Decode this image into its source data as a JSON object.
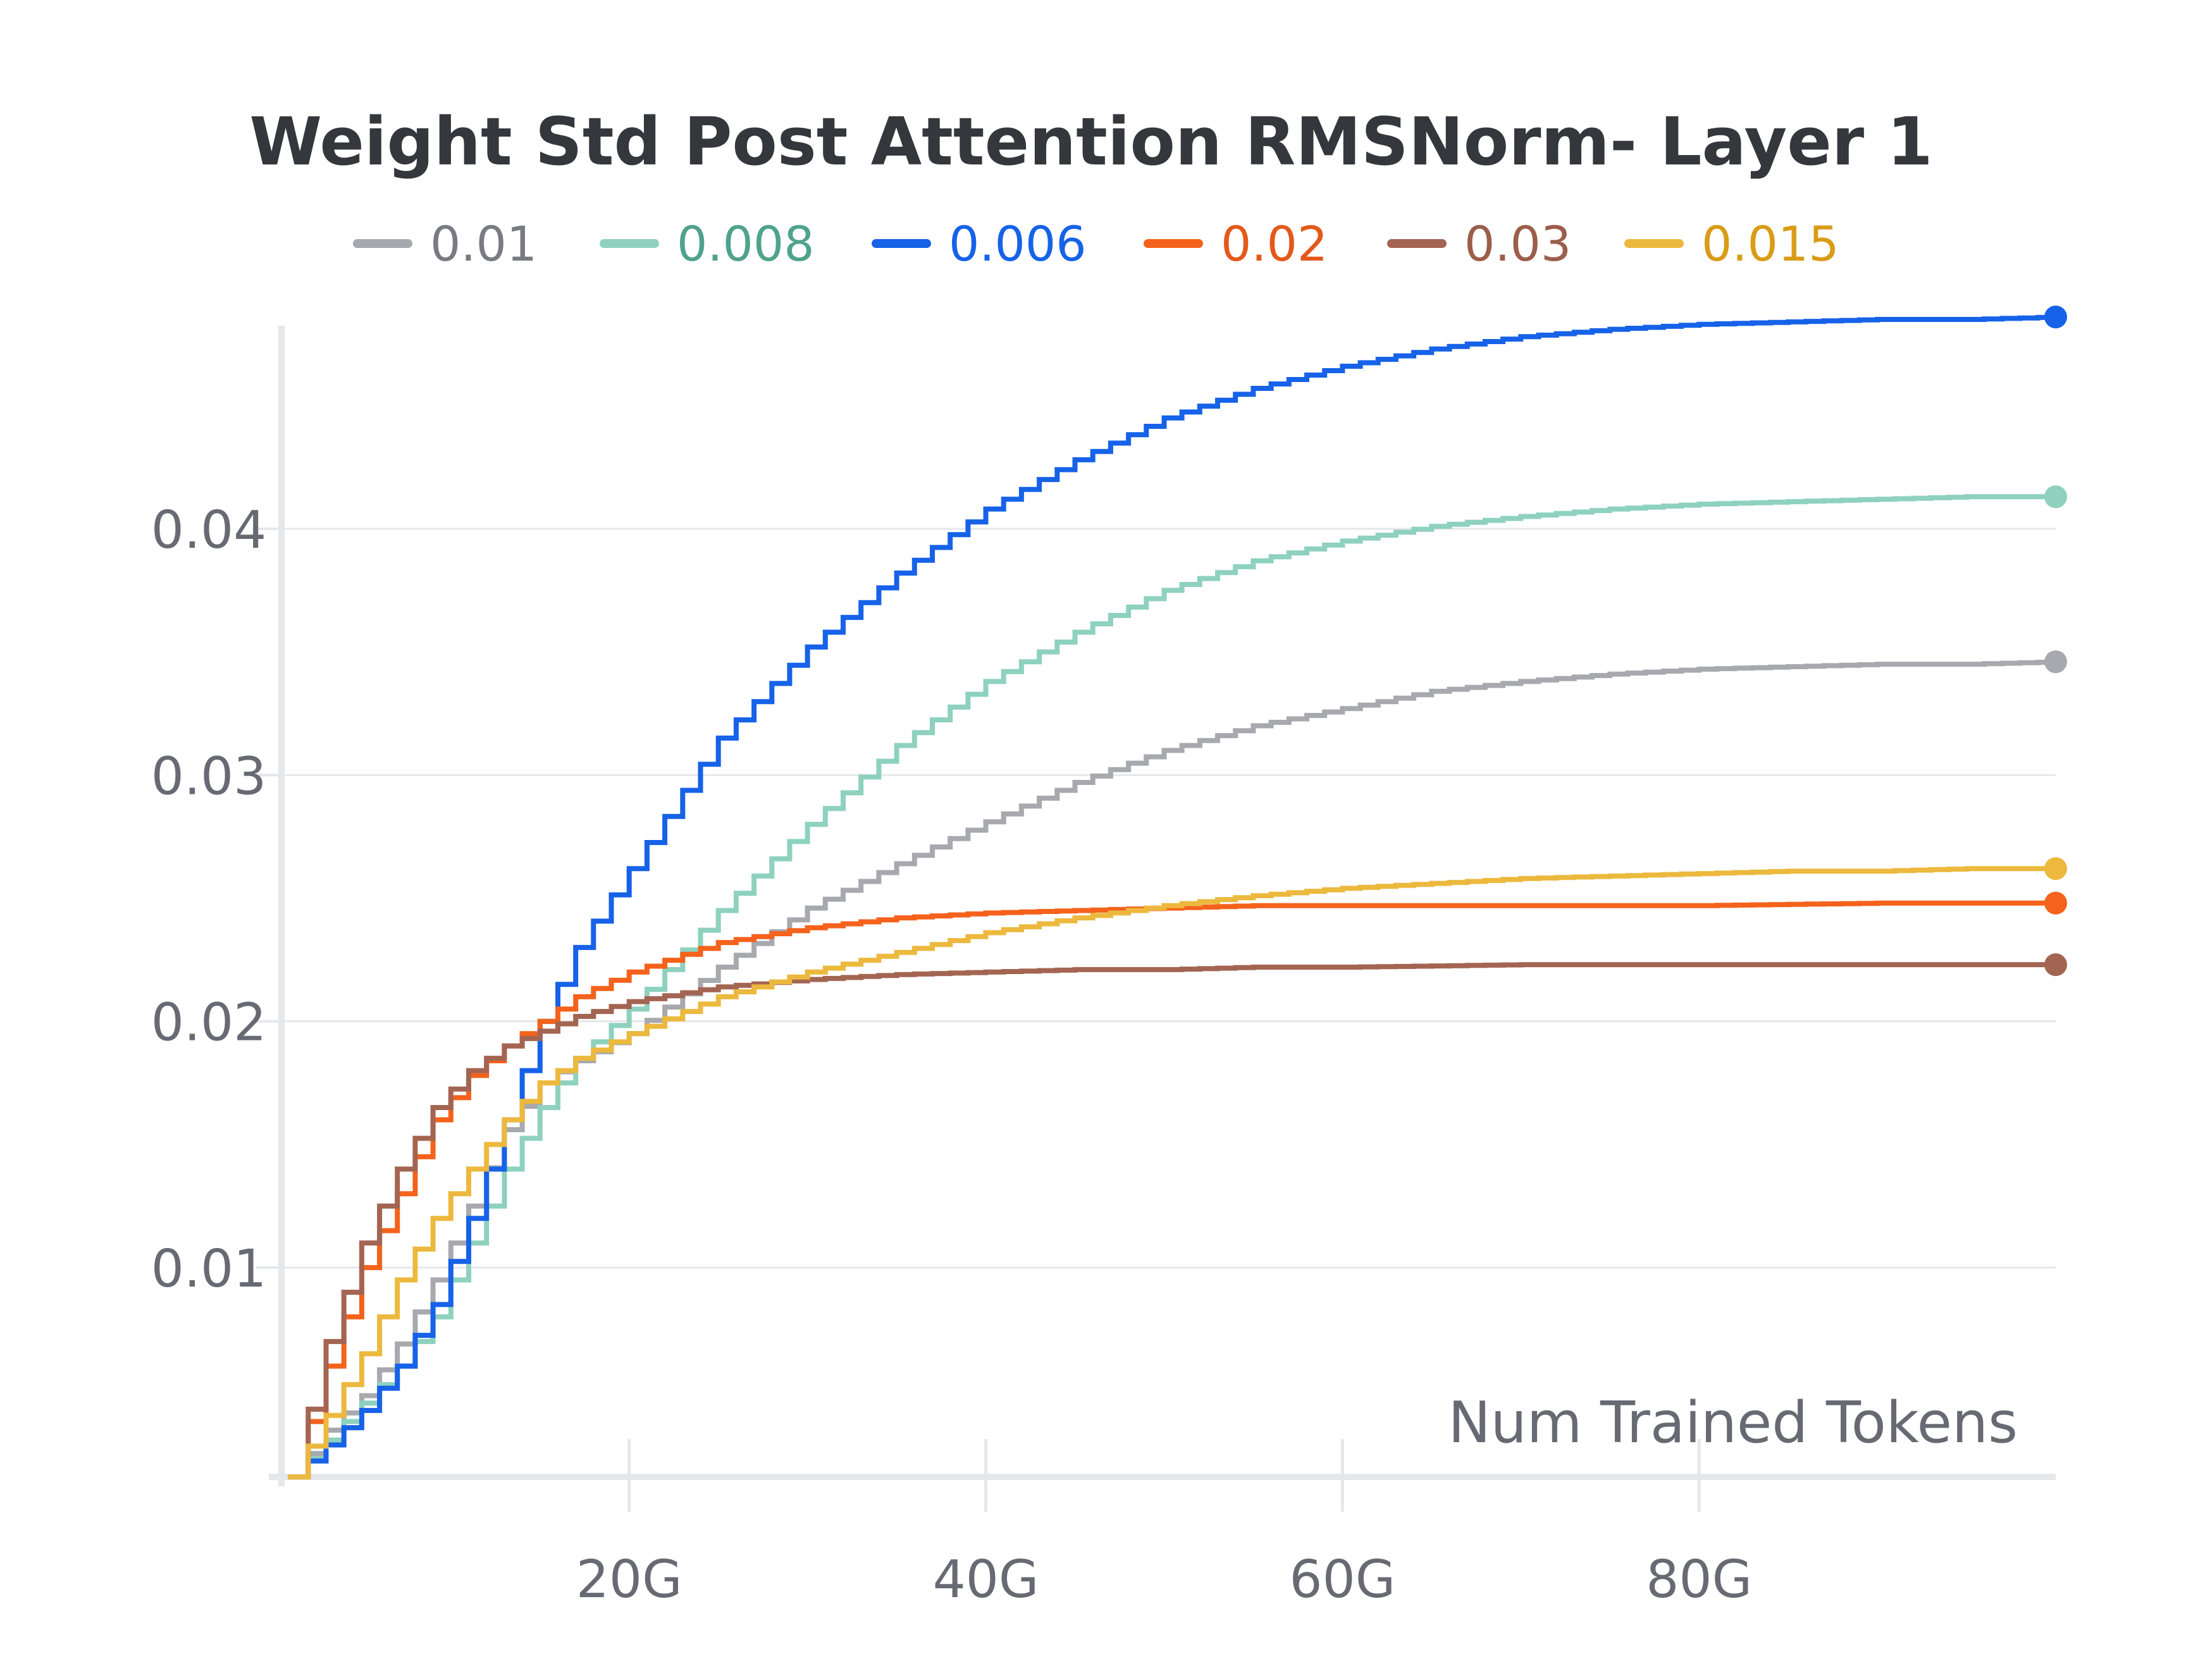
{
  "chart_data": {
    "type": "line",
    "title": "Weight Std Post Attention RMSNorm- Layer 1",
    "xlabel": "Num Trained Tokens",
    "ylabel": "",
    "x_unit_suffix": "G",
    "xlim": [
      0.5,
      100
    ],
    "ylim": [
      0.0015,
      0.0485
    ],
    "x_ticks": [
      {
        "value": 20,
        "label": "20G"
      },
      {
        "value": 40,
        "label": "40G"
      },
      {
        "value": 60,
        "label": "60G"
      },
      {
        "value": 80,
        "label": "80G"
      }
    ],
    "y_ticks": [
      {
        "value": 0.01,
        "label": "0.01"
      },
      {
        "value": 0.02,
        "label": "0.02"
      },
      {
        "value": 0.03,
        "label": "0.03"
      },
      {
        "value": 0.04,
        "label": "0.04"
      }
    ],
    "grid": {
      "horizontal": true,
      "vertical": false
    },
    "legend_position": "top",
    "step_size": 1,
    "series": [
      {
        "name": "0.01",
        "color": "#a7a9ae",
        "label_color": "#787b82",
        "points": [
          [
            1,
            0.0015
          ],
          [
            3,
            0.0034
          ],
          [
            5,
            0.0048
          ],
          [
            7,
            0.0069
          ],
          [
            9,
            0.0095
          ],
          [
            11,
            0.0125
          ],
          [
            13,
            0.0156
          ],
          [
            15,
            0.0175
          ],
          [
            17,
            0.0184
          ],
          [
            20,
            0.0195
          ],
          [
            25,
            0.0222
          ],
          [
            30,
            0.0246
          ],
          [
            35,
            0.0264
          ],
          [
            40,
            0.0281
          ],
          [
            45,
            0.0297
          ],
          [
            50,
            0.031
          ],
          [
            55,
            0.032
          ],
          [
            60,
            0.0327
          ],
          [
            65,
            0.0334
          ],
          [
            70,
            0.0338
          ],
          [
            75,
            0.0341
          ],
          [
            80,
            0.0343
          ],
          [
            85,
            0.0344
          ],
          [
            90,
            0.0345
          ],
          [
            95,
            0.0345
          ],
          [
            100,
            0.0346
          ]
        ]
      },
      {
        "name": "0.008",
        "color": "#8ed1bf",
        "label_color": "#4fa38c",
        "points": [
          [
            1,
            0.0015
          ],
          [
            3,
            0.003
          ],
          [
            5,
            0.0045
          ],
          [
            7,
            0.006
          ],
          [
            9,
            0.008
          ],
          [
            11,
            0.011
          ],
          [
            13,
            0.014
          ],
          [
            15,
            0.0165
          ],
          [
            17,
            0.0185
          ],
          [
            20,
            0.0205
          ],
          [
            25,
            0.0245
          ],
          [
            30,
            0.028
          ],
          [
            35,
            0.0312
          ],
          [
            40,
            0.0338
          ],
          [
            45,
            0.0358
          ],
          [
            50,
            0.0375
          ],
          [
            55,
            0.0387
          ],
          [
            60,
            0.0395
          ],
          [
            65,
            0.0401
          ],
          [
            70,
            0.0405
          ],
          [
            75,
            0.0408
          ],
          [
            80,
            0.041
          ],
          [
            85,
            0.0411
          ],
          [
            90,
            0.0412
          ],
          [
            95,
            0.0413
          ],
          [
            100,
            0.0413
          ]
        ]
      },
      {
        "name": "0.006",
        "color": "#1662e8",
        "label_color": "#1662e8",
        "points": [
          [
            1,
            0.0015
          ],
          [
            3,
            0.0028
          ],
          [
            5,
            0.0042
          ],
          [
            7,
            0.006
          ],
          [
            9,
            0.0085
          ],
          [
            11,
            0.012
          ],
          [
            13,
            0.016
          ],
          [
            15,
            0.02
          ],
          [
            17,
            0.023
          ],
          [
            20,
            0.0262
          ],
          [
            25,
            0.0315
          ],
          [
            30,
            0.0352
          ],
          [
            35,
            0.0382
          ],
          [
            40,
            0.0408
          ],
          [
            45,
            0.0428
          ],
          [
            50,
            0.0445
          ],
          [
            55,
            0.0457
          ],
          [
            60,
            0.0466
          ],
          [
            65,
            0.0473
          ],
          [
            70,
            0.0478
          ],
          [
            75,
            0.0481
          ],
          [
            80,
            0.0483
          ],
          [
            85,
            0.0484
          ],
          [
            90,
            0.0485
          ],
          [
            95,
            0.0485
          ],
          [
            100,
            0.0486
          ]
        ]
      },
      {
        "name": "0.02",
        "color": "#f4621c",
        "label_color": "#e3591a",
        "points": [
          [
            1,
            0.0015
          ],
          [
            3,
            0.006
          ],
          [
            5,
            0.01
          ],
          [
            7,
            0.013
          ],
          [
            9,
            0.016
          ],
          [
            11,
            0.0178
          ],
          [
            13,
            0.019
          ],
          [
            15,
            0.02
          ],
          [
            17,
            0.021
          ],
          [
            20,
            0.022
          ],
          [
            25,
            0.0232
          ],
          [
            30,
            0.0238
          ],
          [
            35,
            0.0242
          ],
          [
            40,
            0.0244
          ],
          [
            45,
            0.0245
          ],
          [
            50,
            0.0246
          ],
          [
            55,
            0.0247
          ],
          [
            60,
            0.0247
          ],
          [
            70,
            0.0247
          ],
          [
            80,
            0.0247
          ],
          [
            90,
            0.0248
          ],
          [
            100,
            0.0248
          ]
        ]
      },
      {
        "name": "0.03",
        "color": "#a36552",
        "label_color": "#9b5e4a",
        "points": [
          [
            1,
            0.0015
          ],
          [
            3,
            0.007
          ],
          [
            5,
            0.011
          ],
          [
            7,
            0.014
          ],
          [
            9,
            0.0165
          ],
          [
            11,
            0.018
          ],
          [
            13,
            0.019
          ],
          [
            15,
            0.0196
          ],
          [
            17,
            0.0202
          ],
          [
            20,
            0.0208
          ],
          [
            25,
            0.0214
          ],
          [
            30,
            0.0217
          ],
          [
            35,
            0.0219
          ],
          [
            40,
            0.022
          ],
          [
            45,
            0.0221
          ],
          [
            50,
            0.0221
          ],
          [
            55,
            0.0222
          ],
          [
            60,
            0.0222
          ],
          [
            70,
            0.0223
          ],
          [
            80,
            0.0223
          ],
          [
            90,
            0.0223
          ],
          [
            100,
            0.0223
          ]
        ]
      },
      {
        "name": "0.015",
        "color": "#ecb93e",
        "label_color": "#d99c16",
        "points": [
          [
            1,
            0.0015
          ],
          [
            3,
            0.004
          ],
          [
            5,
            0.0065
          ],
          [
            7,
            0.0095
          ],
          [
            9,
            0.012
          ],
          [
            11,
            0.014
          ],
          [
            13,
            0.016
          ],
          [
            15,
            0.0175
          ],
          [
            17,
            0.0185
          ],
          [
            20,
            0.0195
          ],
          [
            25,
            0.021
          ],
          [
            30,
            0.022
          ],
          [
            35,
            0.0228
          ],
          [
            40,
            0.0236
          ],
          [
            45,
            0.0242
          ],
          [
            50,
            0.0247
          ],
          [
            55,
            0.0251
          ],
          [
            60,
            0.0254
          ],
          [
            65,
            0.0256
          ],
          [
            70,
            0.0258
          ],
          [
            75,
            0.0259
          ],
          [
            80,
            0.026
          ],
          [
            85,
            0.0261
          ],
          [
            90,
            0.0261
          ],
          [
            95,
            0.0262
          ],
          [
            100,
            0.0262
          ]
        ]
      }
    ]
  }
}
